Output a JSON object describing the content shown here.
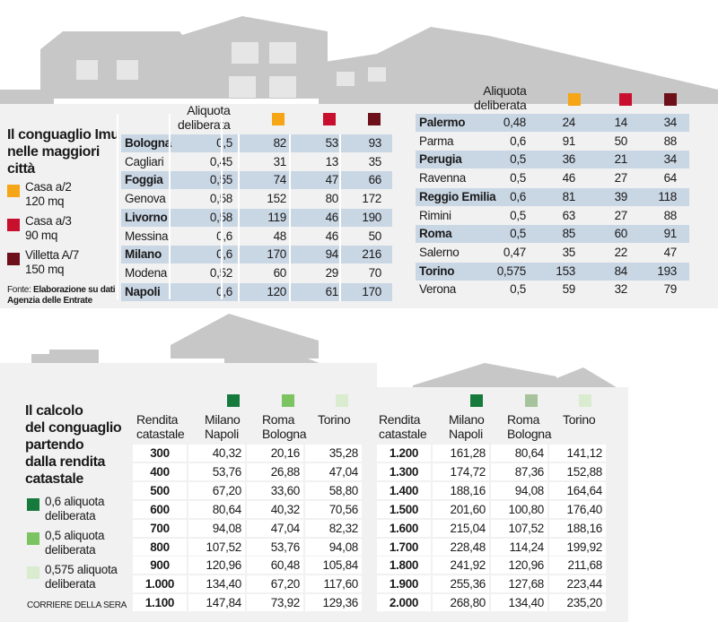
{
  "colors": {
    "casa_a2": "#f5a515",
    "casa_a3": "#c8102e",
    "villetta_a7": "#6e1019",
    "aliquota_06": "#167a3c",
    "aliquota_05": "#7cc462",
    "aliquota_0575": "#d9ecd0",
    "band": "#c9d6e4",
    "panel": "#f1f1f1"
  },
  "top": {
    "title_line1": "Il conguaglio Imu",
    "title_line2": "nelle maggiori",
    "title_line3": "città",
    "legend": [
      {
        "icon": "orange-square",
        "line1": "Casa a/2",
        "line2": "120 mq"
      },
      {
        "icon": "red-square",
        "line1": "Casa a/3",
        "line2": "90 mq"
      },
      {
        "icon": "dark-red-square",
        "line1": "Villetta A/7",
        "line2": "150 mq"
      }
    ],
    "source_prefix": "Fonte: ",
    "source_line1": "Elaborazione su dati",
    "source_line2": "Agenzia delle Entrate",
    "header_aliquota_line1": "Aliquota",
    "header_aliquota_line2": "deliberata",
    "left_rows": [
      {
        "city": "Bologna",
        "aliquota": "0,5",
        "a2": "82",
        "a3": "53",
        "a7": "93"
      },
      {
        "city": "Cagliari",
        "aliquota": "0,45",
        "a2": "31",
        "a3": "13",
        "a7": "35"
      },
      {
        "city": "Foggia",
        "aliquota": "0,55",
        "a2": "74",
        "a3": "47",
        "a7": "66"
      },
      {
        "city": "Genova",
        "aliquota": "0,58",
        "a2": "152",
        "a3": "80",
        "a7": "172"
      },
      {
        "city": "Livorno",
        "aliquota": "0,58",
        "a2": "119",
        "a3": "46",
        "a7": "190"
      },
      {
        "city": "Messina",
        "aliquota": "0,6",
        "a2": "48",
        "a3": "46",
        "a7": "50"
      },
      {
        "city": "Milano",
        "aliquota": "0,6",
        "a2": "170",
        "a3": "94",
        "a7": "216"
      },
      {
        "city": "Modena",
        "aliquota": "0,52",
        "a2": "60",
        "a3": "29",
        "a7": "70"
      },
      {
        "city": "Napoli",
        "aliquota": "0,6",
        "a2": "120",
        "a3": "61",
        "a7": "170"
      }
    ],
    "right_rows": [
      {
        "city": "Palermo",
        "aliquota": "0,48",
        "a2": "24",
        "a3": "14",
        "a7": "34"
      },
      {
        "city": "Parma",
        "aliquota": "0,6",
        "a2": "91",
        "a3": "50",
        "a7": "88"
      },
      {
        "city": "Perugia",
        "aliquota": "0,5",
        "a2": "36",
        "a3": "21",
        "a7": "34"
      },
      {
        "city": "Ravenna",
        "aliquota": "0,5",
        "a2": "46",
        "a3": "27",
        "a7": "64"
      },
      {
        "city": "Reggio Emilia",
        "aliquota": "0,6",
        "a2": "81",
        "a3": "39",
        "a7": "118"
      },
      {
        "city": "Rimini",
        "aliquota": "0,5",
        "a2": "63",
        "a3": "27",
        "a7": "88"
      },
      {
        "city": "Roma",
        "aliquota": "0,5",
        "a2": "85",
        "a3": "60",
        "a7": "91"
      },
      {
        "city": "Salerno",
        "aliquota": "0,47",
        "a2": "35",
        "a3": "22",
        "a7": "47"
      },
      {
        "city": "Torino",
        "aliquota": "0,575",
        "a2": "153",
        "a3": "84",
        "a7": "193"
      },
      {
        "city": "Verona",
        "aliquota": "0,5",
        "a2": "59",
        "a3": "32",
        "a7": "79"
      }
    ]
  },
  "bottom": {
    "title_line1": "Il calcolo",
    "title_line2": "del conguaglio",
    "title_line3": "partendo",
    "title_line4": "dalla rendita",
    "title_line5": "catastale",
    "legend": [
      {
        "icon": "dark-green-square",
        "line1": "0,6 aliquota",
        "line2": "deliberata"
      },
      {
        "icon": "green-square",
        "line1": "0,5 aliquota",
        "line2": "deliberata"
      },
      {
        "icon": "light-green-square",
        "line1": "0,575 aliquota",
        "line2": "deliberata"
      }
    ],
    "credit": "CORRIERE DELLA SERA",
    "header_rendita_line1": "Rendita",
    "header_rendita_line2": "catastale",
    "header_milano_line1": "Milano",
    "header_milano_line2": "Napoli",
    "header_roma_line1": "Roma",
    "header_roma_line2": "Bologna",
    "header_torino": "Torino",
    "left_rows": [
      {
        "rendita": "300",
        "milano_napoli": "40,32",
        "roma_bologna": "20,16",
        "torino": "35,28"
      },
      {
        "rendita": "400",
        "milano_napoli": "53,76",
        "roma_bologna": "26,88",
        "torino": "47,04"
      },
      {
        "rendita": "500",
        "milano_napoli": "67,20",
        "roma_bologna": "33,60",
        "torino": "58,80"
      },
      {
        "rendita": "600",
        "milano_napoli": "80,64",
        "roma_bologna": "40,32",
        "torino": "70,56"
      },
      {
        "rendita": "700",
        "milano_napoli": "94,08",
        "roma_bologna": "47,04",
        "torino": "82,32"
      },
      {
        "rendita": "800",
        "milano_napoli": "107,52",
        "roma_bologna": "53,76",
        "torino": "94,08"
      },
      {
        "rendita": "900",
        "milano_napoli": "120,96",
        "roma_bologna": "60,48",
        "torino": "105,84"
      },
      {
        "rendita": "1.000",
        "milano_napoli": "134,40",
        "roma_bologna": "67,20",
        "torino": "117,60"
      },
      {
        "rendita": "1.100",
        "milano_napoli": "147,84",
        "roma_bologna": "73,92",
        "torino": "129,36"
      }
    ],
    "right_rows": [
      {
        "rendita": "1.200",
        "milano_napoli": "161,28",
        "roma_bologna": "80,64",
        "torino": "141,12"
      },
      {
        "rendita": "1.300",
        "milano_napoli": "174,72",
        "roma_bologna": "87,36",
        "torino": "152,88"
      },
      {
        "rendita": "1.400",
        "milano_napoli": "188,16",
        "roma_bologna": "94,08",
        "torino": "164,64"
      },
      {
        "rendita": "1.500",
        "milano_napoli": "201,60",
        "roma_bologna": "100,80",
        "torino": "176,40"
      },
      {
        "rendita": "1.600",
        "milano_napoli": "215,04",
        "roma_bologna": "107,52",
        "torino": "188,16"
      },
      {
        "rendita": "1.700",
        "milano_napoli": "228,48",
        "roma_bologna": "114,24",
        "torino": "199,92"
      },
      {
        "rendita": "1.800",
        "milano_napoli": "241,92",
        "roma_bologna": "120,96",
        "torino": "211,68"
      },
      {
        "rendita": "1.900",
        "milano_napoli": "255,36",
        "roma_bologna": "127,68",
        "torino": "223,44"
      },
      {
        "rendita": "2.000",
        "milano_napoli": "268,80",
        "roma_bologna": "134,40",
        "torino": "235,20"
      }
    ]
  }
}
